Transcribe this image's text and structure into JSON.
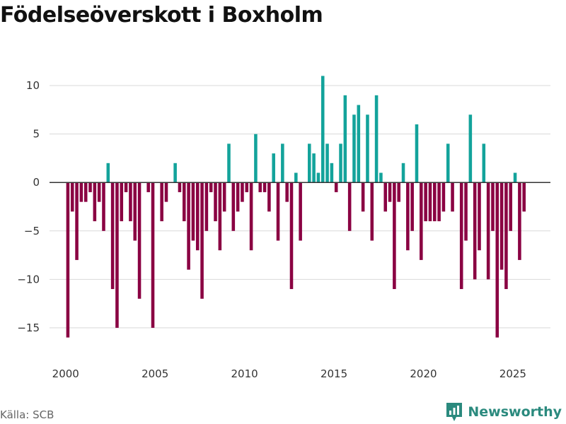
{
  "colors": {
    "positive": "#13a39b",
    "negative": "#8a0042",
    "grid": "#d9d9d9",
    "zero": "#333333",
    "brand": "#2b8a7e"
  },
  "footer": {
    "source": "Källa: SCB",
    "brand": "Newsworthy"
  },
  "chart_data": {
    "type": "bar",
    "title": "Födelseöverskott i Boxholm",
    "xlabel": "",
    "ylabel": "",
    "ylim": [
      -18,
      13
    ],
    "xlim": [
      1999.1,
      2027.1
    ],
    "yticks": [
      10,
      5,
      0,
      -5,
      -10,
      -15
    ],
    "ytick_labels": [
      "10",
      "5",
      "0",
      "−5",
      "−10",
      "−15"
    ],
    "xticks": [
      2000,
      2005,
      2010,
      2015,
      2020,
      2025
    ],
    "xtick_labels": [
      "2000",
      "2005",
      "2010",
      "2015",
      "2020",
      "2025"
    ],
    "frequency": "quarterly",
    "start": 2000,
    "series": [
      {
        "name": "Födelseöverskott",
        "values": [
          -16,
          -3,
          -8,
          -2,
          -2,
          -1,
          -4,
          -2,
          -5,
          2,
          -11,
          -15,
          -4,
          -1,
          -4,
          -6,
          -12,
          0,
          -1,
          -15,
          0,
          -4,
          -2,
          0,
          2,
          -1,
          -4,
          -9,
          -6,
          -7,
          -12,
          -5,
          -1,
          -4,
          -7,
          -3,
          4,
          -5,
          -3,
          -2,
          -1,
          -7,
          5,
          -1,
          -1,
          -3,
          3,
          -6,
          4,
          -2,
          -11,
          1,
          -6,
          0,
          4,
          3,
          1,
          11,
          4,
          2,
          -1,
          4,
          9,
          -5,
          7,
          8,
          -3,
          7,
          -6,
          9,
          1,
          -3,
          -2,
          -11,
          -2,
          2,
          -7,
          -5,
          6,
          -8,
          -4,
          -4,
          -4,
          -4,
          -3,
          4,
          -3,
          0,
          -11,
          -6,
          7,
          -10,
          -7,
          4,
          -10,
          -5,
          -16,
          -9,
          -11,
          -5,
          1,
          -8,
          -3
        ]
      }
    ]
  }
}
